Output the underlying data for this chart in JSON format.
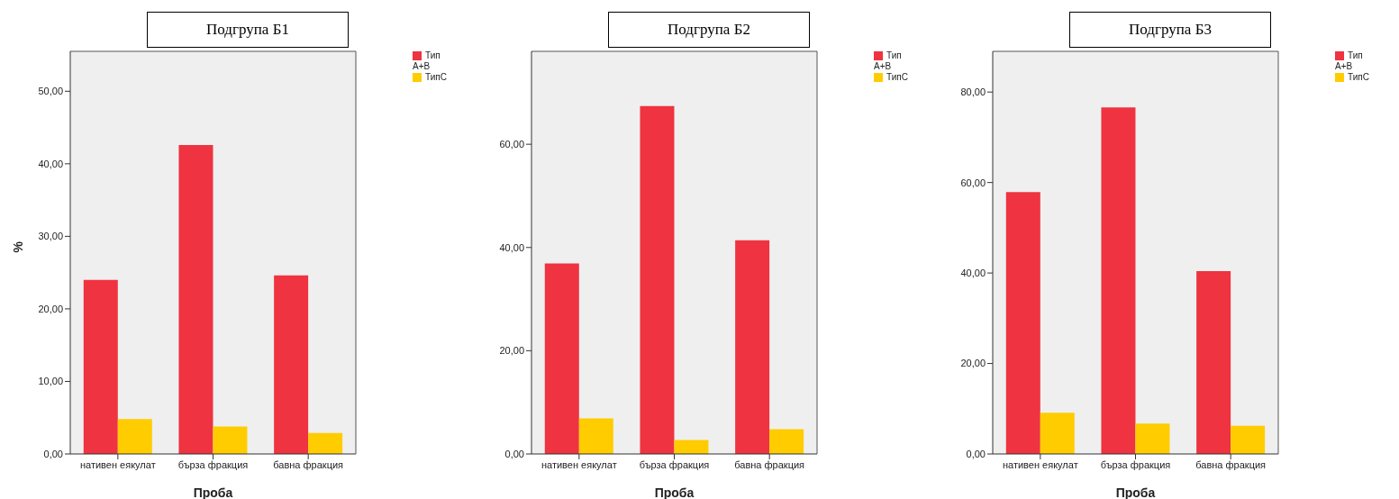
{
  "chart_data": [
    {
      "type": "bar",
      "title": "Подгрупа Б1",
      "xlabel": "Проба",
      "ylabel": "%",
      "categories": [
        "нативен еякулат",
        "бърза фракция",
        "бавна фракция"
      ],
      "series": [
        {
          "name": "Тип А+В",
          "color": "#ef3340",
          "values": [
            24.0,
            42.6,
            24.6
          ]
        },
        {
          "name": "ТипС",
          "color": "#ffcc00",
          "values": [
            4.8,
            3.8,
            2.9
          ]
        }
      ],
      "ylim": [
        0,
        55.5
      ],
      "yticks": [
        {
          "value": 0,
          "label": "0,00"
        },
        {
          "value": 10,
          "label": "10,00"
        },
        {
          "value": 20,
          "label": "20,00"
        },
        {
          "value": 30,
          "label": "30,00"
        },
        {
          "value": 40,
          "label": "40,00"
        },
        {
          "value": 50,
          "label": "50,00"
        }
      ],
      "grid": false,
      "legend": "top right"
    },
    {
      "type": "bar",
      "title": "Подгрупа Б2",
      "xlabel": "Проба",
      "categories": [
        "нативен еякулат",
        "бърза фракция",
        "бавна фракция"
      ],
      "series": [
        {
          "name": "Тип А+В",
          "color": "#ef3340",
          "values": [
            36.9,
            67.4,
            41.4
          ]
        },
        {
          "name": "ТипС",
          "color": "#ffcc00",
          "values": [
            6.9,
            2.7,
            4.8
          ]
        }
      ],
      "ylim": [
        0,
        78
      ],
      "yticks": [
        {
          "value": 0,
          "label": "0,00"
        },
        {
          "value": 20,
          "label": "20,00"
        },
        {
          "value": 40,
          "label": "40,00"
        },
        {
          "value": 60,
          "label": "60,00"
        }
      ],
      "grid": false,
      "legend": "top right"
    },
    {
      "type": "bar",
      "title": "Подгрупа Б3",
      "xlabel": "Проба",
      "categories": [
        "нативен еякулат",
        "бърза фракция",
        "бавна фракция"
      ],
      "series": [
        {
          "name": "Тип А+В",
          "color": "#ef3340",
          "values": [
            57.9,
            76.6,
            40.4
          ]
        },
        {
          "name": "ТипС",
          "color": "#ffcc00",
          "values": [
            9.1,
            6.7,
            6.2
          ]
        }
      ],
      "ylim": [
        0,
        89
      ],
      "yticks": [
        {
          "value": 0,
          "label": "0,00"
        },
        {
          "value": 20,
          "label": "20,00"
        },
        {
          "value": 40,
          "label": "40,00"
        },
        {
          "value": 60,
          "label": "60,00"
        },
        {
          "value": 80,
          "label": "80,00"
        }
      ],
      "grid": false,
      "legend": "top right"
    }
  ]
}
